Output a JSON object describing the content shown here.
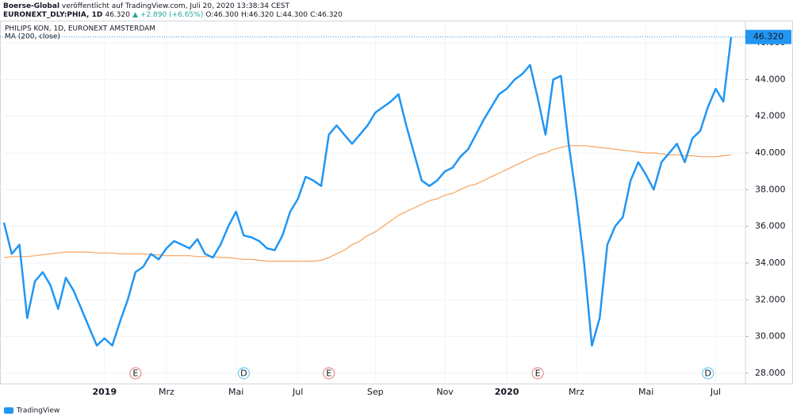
{
  "header": {
    "publisher": "Boerse-Global",
    "published": " veröffentlicht auf TradingView.com, Juli 20, 2020 13:38:34 CEST",
    "symbol": "EURONEXT_DLY:PHIA, 1D",
    "quote": "46.320",
    "change": "▲ +2.890 (+6.65%)",
    "o": "O:46.300",
    "h": "H:46.320",
    "l": "L:44.300",
    "c": "C:46.320"
  },
  "footer": {
    "brand": "TradingView"
  },
  "chart_data": {
    "type": "line",
    "title": "PHILIPS KON, 1D, EURONEXT AMSTERDAM",
    "categories": [
      null,
      null,
      null,
      null,
      null,
      null,
      null,
      null,
      null,
      null,
      null,
      null,
      null,
      "2019",
      null,
      null,
      null,
      null,
      null,
      null,
      null,
      "Mrz",
      null,
      null,
      null,
      null,
      null,
      null,
      null,
      null,
      "Mai",
      null,
      null,
      null,
      null,
      null,
      null,
      null,
      "Jul",
      null,
      null,
      null,
      null,
      null,
      null,
      null,
      null,
      null,
      "Sep",
      null,
      null,
      null,
      null,
      null,
      null,
      null,
      null,
      "Nov",
      null,
      null,
      null,
      null,
      null,
      null,
      null,
      "2020",
      null,
      null,
      null,
      null,
      null,
      null,
      null,
      null,
      "Mrz",
      null,
      null,
      null,
      null,
      null,
      null,
      null,
      null,
      "Mai",
      null,
      null,
      null,
      null,
      null,
      null,
      null,
      null,
      "Jul",
      null,
      null
    ],
    "series": [
      {
        "name": "PHILIPS KON",
        "color": "#2196f3",
        "last_value_label": "46.320",
        "values": [
          36.2,
          34.5,
          35.0,
          31.0,
          33.0,
          33.5,
          32.8,
          31.5,
          33.2,
          32.5,
          31.5,
          30.5,
          29.5,
          29.9,
          29.5,
          30.8,
          32.0,
          33.5,
          33.8,
          34.5,
          34.2,
          34.8,
          35.2,
          35.0,
          34.8,
          35.3,
          34.5,
          34.3,
          35.0,
          36.0,
          36.8,
          35.5,
          35.4,
          35.2,
          34.8,
          34.7,
          35.5,
          36.8,
          37.5,
          38.7,
          38.5,
          38.2,
          41.0,
          41.5,
          41.0,
          40.5,
          41.0,
          41.5,
          42.2,
          42.5,
          42.8,
          43.2,
          41.5,
          40.0,
          38.5,
          38.2,
          38.5,
          39.0,
          39.2,
          39.8,
          40.2,
          41.0,
          41.8,
          42.5,
          43.2,
          43.5,
          44.0,
          44.3,
          44.8,
          43.0,
          41.0,
          44.0,
          44.2,
          40.5,
          37.5,
          34.0,
          29.5,
          31.0,
          35.0,
          36.0,
          36.5,
          38.5,
          39.5,
          38.8,
          38.0,
          39.5,
          40.0,
          40.5,
          39.5,
          40.8,
          41.2,
          42.5,
          43.5,
          42.8,
          46.32
        ]
      },
      {
        "name": "MA (200, close)",
        "color": "#f7a35c",
        "values": [
          34.3,
          34.35,
          34.35,
          34.35,
          34.4,
          34.45,
          34.5,
          34.55,
          34.6,
          34.6,
          34.6,
          34.6,
          34.55,
          34.55,
          34.55,
          34.5,
          34.5,
          34.5,
          34.5,
          34.45,
          34.45,
          34.4,
          34.4,
          34.4,
          34.4,
          34.35,
          34.35,
          34.35,
          34.3,
          34.3,
          34.25,
          34.2,
          34.2,
          34.15,
          34.1,
          34.1,
          34.1,
          34.1,
          34.1,
          34.1,
          34.1,
          34.15,
          34.3,
          34.5,
          34.7,
          35.0,
          35.2,
          35.5,
          35.7,
          36.0,
          36.3,
          36.6,
          36.8,
          37.0,
          37.2,
          37.4,
          37.5,
          37.7,
          37.8,
          38.0,
          38.2,
          38.3,
          38.5,
          38.7,
          38.9,
          39.1,
          39.3,
          39.5,
          39.7,
          39.9,
          40.0,
          40.2,
          40.3,
          40.4,
          40.4,
          40.4,
          40.35,
          40.3,
          40.25,
          40.2,
          40.15,
          40.1,
          40.05,
          40.0,
          40.0,
          39.95,
          39.9,
          39.9,
          39.85,
          39.85,
          39.8,
          39.8,
          39.8,
          39.85,
          39.9
        ]
      }
    ],
    "events": [
      {
        "label": "E",
        "at": 17,
        "color": "#e57373"
      },
      {
        "label": "D",
        "at": 31,
        "color": "#4fc3f7"
      },
      {
        "label": "E",
        "at": 42,
        "color": "#e57373"
      },
      {
        "label": "E",
        "at": 69,
        "color": "#e57373"
      },
      {
        "label": "D",
        "at": 91,
        "color": "#4fc3f7"
      }
    ],
    "ylim": [
      27.39,
      47.17
    ],
    "yticks": [
      {
        "value": 28,
        "label": "28.000"
      },
      {
        "value": 30,
        "label": "30.000"
      },
      {
        "value": 32,
        "label": "32.000"
      },
      {
        "value": 34,
        "label": "34.000"
      },
      {
        "value": 36,
        "label": "36.000"
      },
      {
        "value": 38,
        "label": "38.000"
      },
      {
        "value": 40,
        "label": "40.000"
      },
      {
        "value": 42,
        "label": "42.000"
      },
      {
        "value": 44,
        "label": "44.000"
      },
      {
        "value": 46,
        "label": "46.000"
      }
    ],
    "grid": true
  }
}
